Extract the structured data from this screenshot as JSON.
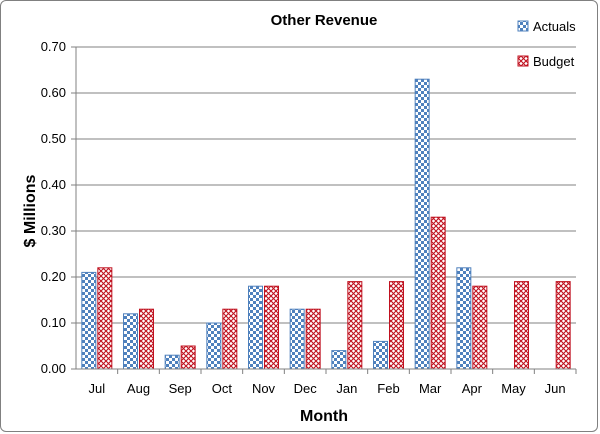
{
  "chart_data": {
    "type": "bar",
    "title": "Other Revenue",
    "xlabel": "Month",
    "ylabel": "$ Millions",
    "categories": [
      "Jul",
      "Aug",
      "Sep",
      "Oct",
      "Nov",
      "Dec",
      "Jan",
      "Feb",
      "Mar",
      "Apr",
      "May",
      "Jun"
    ],
    "series": [
      {
        "name": "Actuals",
        "color": "#4f81bd",
        "pattern": "checkerboard",
        "values": [
          0.21,
          0.12,
          0.03,
          0.1,
          0.18,
          0.13,
          0.04,
          0.06,
          0.63,
          0.22,
          null,
          null
        ]
      },
      {
        "name": "Budget",
        "color": "#c0111f",
        "pattern": "crosshatch",
        "values": [
          0.22,
          0.13,
          0.05,
          0.13,
          0.18,
          0.13,
          0.19,
          0.19,
          0.33,
          0.18,
          0.19,
          0.19
        ]
      }
    ],
    "ylim": [
      0,
      0.7
    ],
    "yticks": [
      "0.00",
      "0.10",
      "0.20",
      "0.30",
      "0.40",
      "0.50",
      "0.60",
      "0.70"
    ],
    "grid": true,
    "legend_position": "top-right"
  }
}
